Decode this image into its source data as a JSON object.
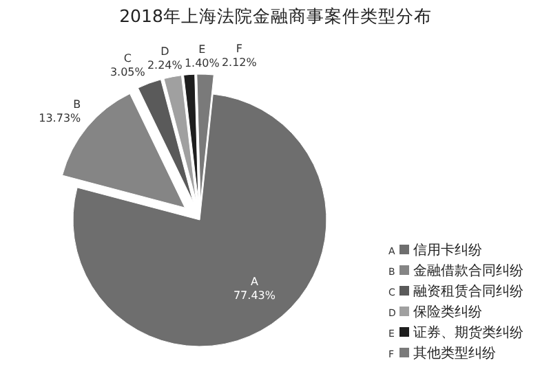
{
  "chart_data": {
    "type": "pie",
    "title": "2018年上海法院金融商事案件类型分布",
    "categories": [
      "A",
      "B",
      "C",
      "D",
      "E",
      "F"
    ],
    "values": [
      77.43,
      13.73,
      3.05,
      2.24,
      1.4,
      2.12
    ],
    "colors": [
      "#6e6e6e",
      "#858585",
      "#5a5a5a",
      "#a0a0a0",
      "#1e1e1e",
      "#7a7a7a"
    ],
    "value_labels": [
      "77.43%",
      "13.73%",
      "3.05%",
      "2.24%",
      "1.40%",
      "2.12%"
    ],
    "legend": "right",
    "annotations": [
      "信用卡纠纷",
      "金融借款合同纠纷",
      "融资租赁合同纠纷",
      "保险类纠纷",
      "证券、期货类纠纷",
      "其他类型纠纷"
    ]
  }
}
